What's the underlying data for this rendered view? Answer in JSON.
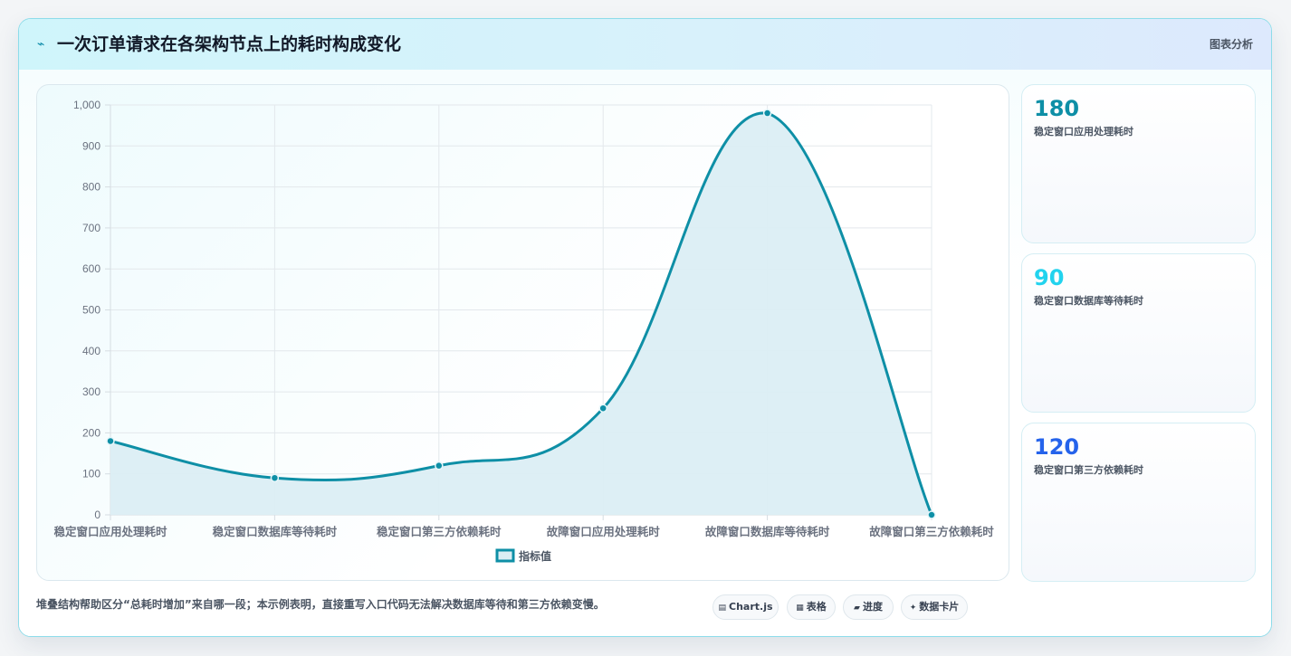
{
  "header": {
    "icon": "pulse-icon",
    "title": "一次订单请求在各架构节点上的耗时构成变化",
    "tag": "图表分析"
  },
  "chart_data": {
    "type": "area",
    "categories": [
      "稳定窗口应用处理耗时",
      "稳定窗口数据库等待耗时",
      "稳定窗口第三方依赖耗时",
      "故障窗口应用处理耗时",
      "故障窗口数据库等待耗时",
      "故障窗口第三方依赖耗时"
    ],
    "series": [
      {
        "name": "指标值",
        "values": [
          180,
          90,
          120,
          260,
          980,
          0
        ]
      }
    ],
    "ylim": [
      0,
      1000
    ],
    "yticks": [
      0,
      100,
      200,
      300,
      400,
      500,
      600,
      700,
      800,
      900,
      1000
    ],
    "ytick_labels": [
      "0",
      "100",
      "200",
      "300",
      "400",
      "500",
      "600",
      "700",
      "800",
      "900",
      "1,000"
    ],
    "grid": true,
    "legend_position": "bottom",
    "line_color": "#0e8fa6",
    "fill_color": "#dbeef4"
  },
  "stats": [
    {
      "value": "180",
      "label": "稳定窗口应用处理耗时",
      "color": "#0e8fa6"
    },
    {
      "value": "90",
      "label": "稳定窗口数据库等待耗时",
      "color": "#22d3ee"
    },
    {
      "value": "120",
      "label": "稳定窗口第三方依赖耗时",
      "color": "#2563eb"
    }
  ],
  "footnote": "堆叠结构帮助区分“总耗时增加”来自哪一段；本示例表明，直接重写入口代码无法解决数据库等待和第三方依赖变慢。",
  "chips": [
    {
      "icon": "▤",
      "label": "Chart.js"
    },
    {
      "icon": "▦",
      "label": "表格"
    },
    {
      "icon": "▰",
      "label": "进度"
    },
    {
      "icon": "✦",
      "label": "数据卡片"
    }
  ]
}
